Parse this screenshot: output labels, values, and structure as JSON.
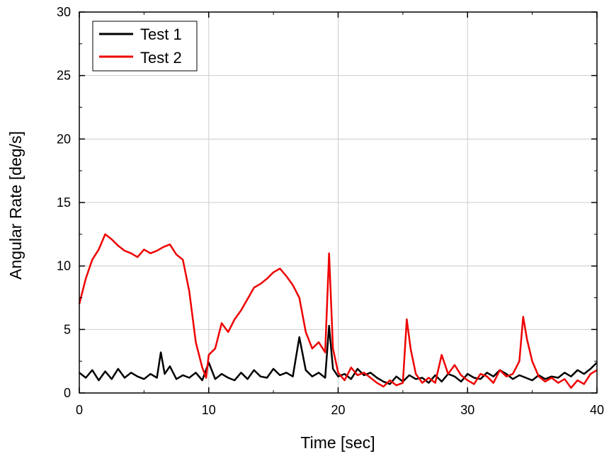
{
  "chart_data": {
    "type": "line",
    "xlabel": "Time [sec]",
    "ylabel": "Angular Rate [deg/s]",
    "xlim": [
      0,
      40
    ],
    "ylim": [
      0,
      30
    ],
    "xticks": [
      0,
      10,
      20,
      30,
      40
    ],
    "yticks": [
      0,
      5,
      10,
      15,
      20,
      25,
      30
    ],
    "grid": true,
    "legend_position": "top-left",
    "series": [
      {
        "name": "Test 1",
        "color": "#000000",
        "x": [
          0,
          0.5,
          1,
          1.5,
          2,
          2.5,
          3,
          3.5,
          4,
          4.5,
          5,
          5.5,
          6,
          6.3,
          6.6,
          7,
          7.5,
          8,
          8.5,
          9,
          9.5,
          10,
          10.5,
          11,
          11.5,
          12,
          12.5,
          13,
          13.5,
          14,
          14.5,
          15,
          15.5,
          16,
          16.5,
          17,
          17.5,
          18,
          18.5,
          19,
          19.3,
          19.6,
          20,
          20.5,
          21,
          21.5,
          22,
          22.5,
          23,
          23.5,
          24,
          24.5,
          25,
          25.5,
          26,
          26.5,
          27,
          27.5,
          28,
          28.5,
          29,
          29.5,
          30,
          30.5,
          31,
          31.5,
          32,
          32.5,
          33,
          33.5,
          34,
          34.5,
          35,
          35.5,
          36,
          36.5,
          37,
          37.5,
          38,
          38.5,
          39,
          39.5,
          40
        ],
        "values": [
          1.6,
          1.2,
          1.8,
          1.0,
          1.7,
          1.1,
          1.9,
          1.2,
          1.6,
          1.3,
          1.1,
          1.5,
          1.2,
          3.2,
          1.5,
          2.1,
          1.1,
          1.4,
          1.2,
          1.6,
          1.0,
          2.4,
          1.1,
          1.5,
          1.2,
          1.0,
          1.6,
          1.1,
          1.8,
          1.3,
          1.2,
          1.9,
          1.4,
          1.6,
          1.3,
          4.4,
          1.8,
          1.3,
          1.6,
          1.2,
          5.3,
          1.9,
          1.3,
          1.5,
          1.1,
          1.9,
          1.4,
          1.6,
          1.2,
          0.9,
          0.7,
          1.3,
          0.9,
          1.4,
          1.1,
          1.2,
          0.8,
          1.4,
          0.9,
          1.5,
          1.3,
          0.9,
          1.5,
          1.2,
          1.1,
          1.6,
          1.3,
          1.8,
          1.5,
          1.1,
          1.4,
          1.2,
          1.0,
          1.4,
          1.1,
          1.3,
          1.2,
          1.6,
          1.3,
          1.8,
          1.5,
          1.9,
          2.4
        ]
      },
      {
        "name": "Test 2",
        "color": "#ee0000",
        "x": [
          0,
          0.5,
          1,
          1.5,
          2,
          2.5,
          3,
          3.5,
          4,
          4.5,
          5,
          5.5,
          6,
          6.5,
          7,
          7.5,
          8,
          8.5,
          9,
          9.5,
          9.8,
          10,
          10.5,
          11,
          11.5,
          12,
          12.5,
          13,
          13.5,
          14,
          14.5,
          15,
          15.5,
          16,
          16.5,
          17,
          17.5,
          18,
          18.5,
          19,
          19.3,
          19.6,
          20,
          20.5,
          21,
          21.5,
          22,
          22.5,
          23,
          23.5,
          24,
          24.5,
          25,
          25.3,
          25.6,
          26,
          26.5,
          27,
          27.5,
          28,
          28.5,
          29,
          29.5,
          30,
          30.5,
          31,
          31.5,
          32,
          32.5,
          33,
          33.5,
          34,
          34.3,
          34.6,
          35,
          35.5,
          36,
          36.5,
          37,
          37.5,
          38,
          38.5,
          39,
          39.5,
          40
        ],
        "values": [
          7.0,
          9.0,
          10.5,
          11.3,
          12.5,
          12.1,
          11.6,
          11.2,
          11.0,
          10.7,
          11.3,
          11.0,
          11.2,
          11.5,
          11.7,
          10.9,
          10.5,
          8.0,
          4.0,
          2.0,
          1.2,
          3.0,
          3.5,
          5.5,
          4.8,
          5.8,
          6.5,
          7.4,
          8.3,
          8.6,
          9.0,
          9.5,
          9.8,
          9.2,
          8.5,
          7.5,
          4.8,
          3.5,
          4.0,
          3.2,
          11.0,
          3.5,
          1.6,
          1.0,
          2.0,
          1.4,
          1.6,
          1.2,
          0.8,
          0.5,
          1.0,
          0.6,
          0.8,
          5.8,
          3.5,
          1.5,
          0.8,
          1.2,
          0.8,
          3.0,
          1.5,
          2.2,
          1.4,
          1.0,
          0.7,
          1.5,
          1.3,
          0.8,
          1.8,
          1.3,
          1.5,
          2.5,
          6.0,
          4.2,
          2.5,
          1.3,
          0.9,
          1.2,
          0.8,
          1.1,
          0.4,
          1.0,
          0.7,
          1.5,
          1.8
        ]
      }
    ]
  }
}
